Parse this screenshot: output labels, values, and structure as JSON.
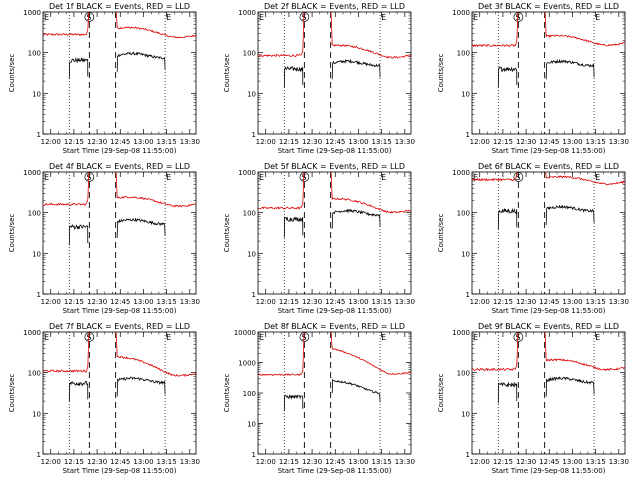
{
  "figure": {
    "xlabel": "Start Time (29-Sep-08 11:55:00)",
    "ylabel": "Counts/sec",
    "x_ticks": [
      "12:00",
      "12:15",
      "12:30",
      "12:45",
      "13:00",
      "13:15",
      "13:30"
    ],
    "x_range": [
      "11:55",
      "13:34"
    ],
    "y_scale": "log",
    "y_tick_labels": [
      "1",
      "10",
      "100",
      "1000"
    ],
    "y_tick_labels_wide": [
      "1",
      "10",
      "100",
      "1000",
      "10000"
    ],
    "colors": {
      "events": "#000000",
      "lld": "#dd0000",
      "axes": "#000000"
    },
    "markers": {
      "e": "E",
      "s": "S"
    },
    "dotted_lines_at": [
      "12:12",
      "13:14"
    ],
    "dashed_lines_at": [
      "12:25",
      "12:42"
    ]
  },
  "chart_data": [
    {
      "type": "line",
      "title": "Det 1f BLACK = Events, RED = LLD",
      "ylim": [
        1,
        1000
      ],
      "series": [
        {
          "name": "Events",
          "color": "#000000",
          "pre": 65,
          "post": 85
        },
        {
          "name": "LLD",
          "color": "#dd0000",
          "pre": 280,
          "post": 290,
          "post_start": 400,
          "post_end": 280
        }
      ]
    },
    {
      "type": "line",
      "title": "Det 2f BLACK = Events, RED = LLD",
      "ylim": [
        1,
        1000
      ],
      "series": [
        {
          "name": "Events",
          "color": "#000000",
          "pre": 40,
          "post": 55
        },
        {
          "name": "LLD",
          "color": "#dd0000",
          "pre": 85,
          "post": 110,
          "post_start": 150,
          "post_end": 90
        }
      ]
    },
    {
      "type": "line",
      "title": "Det 3f BLACK = Events, RED = LLD",
      "ylim": [
        1,
        1000
      ],
      "series": [
        {
          "name": "Events",
          "color": "#000000",
          "pre": 40,
          "post": 55
        },
        {
          "name": "LLD",
          "color": "#dd0000",
          "pre": 150,
          "post": 200,
          "post_start": 250,
          "post_end": 180
        }
      ]
    },
    {
      "type": "line",
      "title": "Det 4f BLACK = Events, RED = LLD",
      "ylim": [
        1,
        1000
      ],
      "series": [
        {
          "name": "Events",
          "color": "#000000",
          "pre": 45,
          "post": 60
        },
        {
          "name": "LLD",
          "color": "#dd0000",
          "pre": 160,
          "post": 190,
          "post_start": 230,
          "post_end": 170
        }
      ]
    },
    {
      "type": "line",
      "title": "Det 5f BLACK = Events, RED = LLD",
      "ylim": [
        1,
        1000
      ],
      "series": [
        {
          "name": "Events",
          "color": "#000000",
          "pre": 70,
          "post": 100
        },
        {
          "name": "LLD",
          "color": "#dd0000",
          "pre": 130,
          "post": 170,
          "post_start": 220,
          "post_end": 120
        }
      ]
    },
    {
      "type": "line",
      "title": "Det 6f BLACK = Events, RED = LLD",
      "ylim": [
        1,
        1000
      ],
      "series": [
        {
          "name": "Events",
          "color": "#000000",
          "pre": 110,
          "post": 125
        },
        {
          "name": "LLD",
          "color": "#dd0000",
          "pre": 650,
          "post": 650,
          "post_start": 700,
          "post_end": 600
        }
      ]
    },
    {
      "type": "line",
      "title": "Det 7f BLACK = Events, RED = LLD",
      "ylim": [
        1,
        1000
      ],
      "series": [
        {
          "name": "Events",
          "color": "#000000",
          "pre": 55,
          "post": 65
        },
        {
          "name": "LLD",
          "color": "#dd0000",
          "pre": 110,
          "post": 130,
          "post_start": 250,
          "post_end": 100
        }
      ]
    },
    {
      "type": "line",
      "title": "Det 8f BLACK = Events, RED = LLD",
      "ylim": [
        1,
        10000
      ],
      "series": [
        {
          "name": "Events",
          "color": "#000000",
          "pre": 75,
          "post": 160,
          "post_start": 250,
          "post_end": 110
        },
        {
          "name": "LLD",
          "color": "#dd0000",
          "pre": 400,
          "post": 1000,
          "post_start": 3000,
          "post_end": 500
        }
      ]
    },
    {
      "type": "line",
      "title": "Det 9f BLACK = Events, RED = LLD",
      "ylim": [
        1,
        1000
      ],
      "series": [
        {
          "name": "Events",
          "color": "#000000",
          "pre": 50,
          "post": 65
        },
        {
          "name": "LLD",
          "color": "#dd0000",
          "pre": 120,
          "post": 150,
          "post_start": 200,
          "post_end": 140
        }
      ]
    }
  ]
}
